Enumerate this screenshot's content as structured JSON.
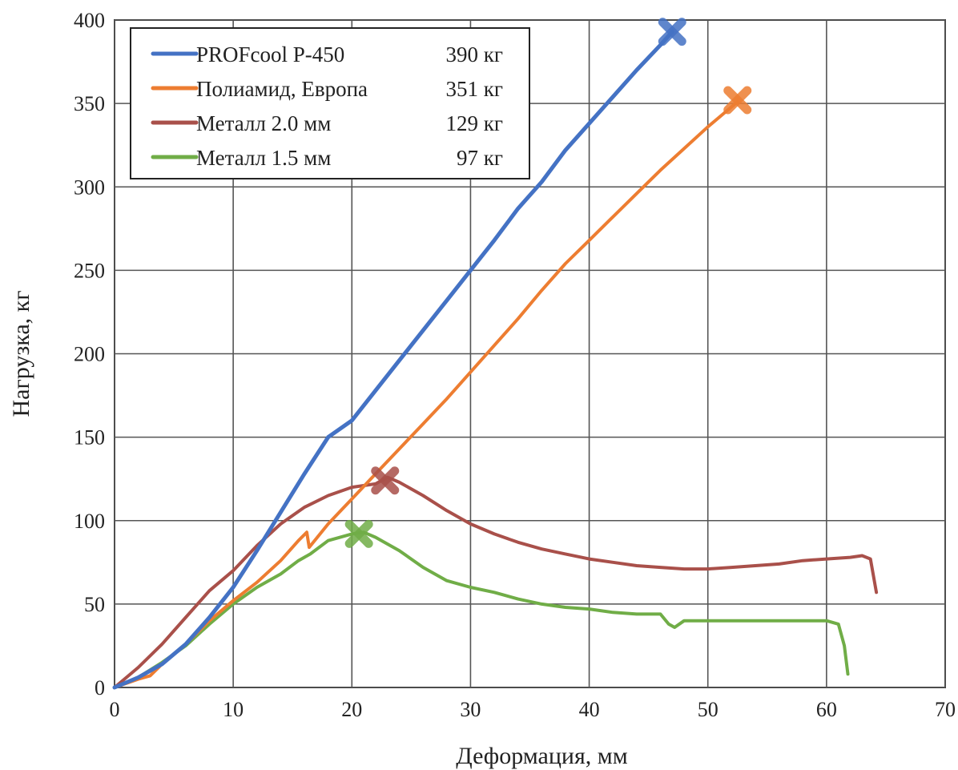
{
  "chart_data": {
    "type": "line",
    "title": "",
    "xlabel": "Деформация, мм",
    "ylabel": "Нагрузка, кг",
    "xlim": [
      0,
      70
    ],
    "ylim": [
      0,
      400
    ],
    "xticks": [
      0,
      10,
      20,
      30,
      40,
      50,
      60,
      70
    ],
    "yticks": [
      0,
      50,
      100,
      150,
      200,
      250,
      300,
      350,
      400
    ],
    "grid": true,
    "legend_position": "top-left",
    "series": [
      {
        "name": "PROFcool P-450",
        "legend_value": "390 кг",
        "color": "#4472c4",
        "marker": "x",
        "marker_point": [
          47,
          393
        ],
        "points": [
          [
            0,
            0
          ],
          [
            2,
            6
          ],
          [
            4,
            14
          ],
          [
            6,
            26
          ],
          [
            8,
            42
          ],
          [
            10,
            60
          ],
          [
            12,
            82
          ],
          [
            14,
            105
          ],
          [
            16,
            128
          ],
          [
            18,
            150
          ],
          [
            20,
            160
          ],
          [
            22,
            178
          ],
          [
            24,
            196
          ],
          [
            26,
            214
          ],
          [
            28,
            232
          ],
          [
            30,
            250
          ],
          [
            32,
            268
          ],
          [
            34,
            287
          ],
          [
            36,
            303
          ],
          [
            38,
            322
          ],
          [
            40,
            338
          ],
          [
            42,
            354
          ],
          [
            44,
            370
          ],
          [
            46,
            385
          ],
          [
            47,
            393
          ]
        ]
      },
      {
        "name": "Полиамид, Европа",
        "legend_value": "351 кг",
        "color": "#ed7d31",
        "marker": "x",
        "marker_point": [
          52.5,
          352
        ],
        "points": [
          [
            0,
            0
          ],
          [
            2,
            5
          ],
          [
            3,
            7
          ],
          [
            4,
            14
          ],
          [
            6,
            26
          ],
          [
            8,
            40
          ],
          [
            10,
            52
          ],
          [
            12,
            63
          ],
          [
            14,
            76
          ],
          [
            15.5,
            88
          ],
          [
            16.2,
            93
          ],
          [
            16.4,
            84
          ],
          [
            18,
            98
          ],
          [
            20,
            113
          ],
          [
            22,
            128
          ],
          [
            24,
            143
          ],
          [
            26,
            158
          ],
          [
            28,
            173
          ],
          [
            30,
            189
          ],
          [
            32,
            205
          ],
          [
            34,
            221
          ],
          [
            36,
            238
          ],
          [
            38,
            254
          ],
          [
            40,
            268
          ],
          [
            42,
            282
          ],
          [
            44,
            296
          ],
          [
            46,
            310
          ],
          [
            48,
            323
          ],
          [
            50,
            336
          ],
          [
            52.5,
            351
          ]
        ]
      },
      {
        "name": "Металл 2.0 мм",
        "legend_value": "129 кг",
        "color": "#a9504a",
        "marker": "x",
        "marker_point": [
          22.8,
          124
        ],
        "points": [
          [
            0,
            0
          ],
          [
            2,
            12
          ],
          [
            4,
            26
          ],
          [
            6,
            42
          ],
          [
            8,
            58
          ],
          [
            10,
            70
          ],
          [
            12,
            85
          ],
          [
            14,
            98
          ],
          [
            16,
            108
          ],
          [
            18,
            115
          ],
          [
            20,
            120
          ],
          [
            22,
            122
          ],
          [
            23,
            126
          ],
          [
            24,
            123
          ],
          [
            26,
            115
          ],
          [
            28,
            106
          ],
          [
            30,
            98
          ],
          [
            32,
            92
          ],
          [
            34,
            87
          ],
          [
            36,
            83
          ],
          [
            38,
            80
          ],
          [
            40,
            77
          ],
          [
            42,
            75
          ],
          [
            44,
            73
          ],
          [
            46,
            72
          ],
          [
            48,
            71
          ],
          [
            50,
            71
          ],
          [
            52,
            72
          ],
          [
            54,
            73
          ],
          [
            56,
            74
          ],
          [
            58,
            76
          ],
          [
            60,
            77
          ],
          [
            62,
            78
          ],
          [
            63,
            79
          ],
          [
            63.7,
            77
          ],
          [
            64.2,
            57
          ]
        ]
      },
      {
        "name": "Металл 1.5 мм",
        "legend_value": "97 кг",
        "color": "#70ad47",
        "marker": "x",
        "marker_point": [
          20.6,
          92
        ],
        "points": [
          [
            0,
            0
          ],
          [
            2,
            6
          ],
          [
            4,
            15
          ],
          [
            6,
            25
          ],
          [
            8,
            38
          ],
          [
            10,
            50
          ],
          [
            12,
            60
          ],
          [
            14,
            68
          ],
          [
            15.5,
            76
          ],
          [
            16.5,
            80
          ],
          [
            18,
            88
          ],
          [
            20,
            92
          ],
          [
            21,
            93
          ],
          [
            22,
            90
          ],
          [
            24,
            82
          ],
          [
            26,
            72
          ],
          [
            28,
            64
          ],
          [
            30,
            60
          ],
          [
            32,
            57
          ],
          [
            34,
            53
          ],
          [
            36,
            50
          ],
          [
            38,
            48
          ],
          [
            40,
            47
          ],
          [
            42,
            45
          ],
          [
            44,
            44
          ],
          [
            46,
            44
          ],
          [
            46.7,
            38
          ],
          [
            47.2,
            36
          ],
          [
            48,
            40
          ],
          [
            50,
            40
          ],
          [
            52,
            40
          ],
          [
            54,
            40
          ],
          [
            56,
            40
          ],
          [
            58,
            40
          ],
          [
            60,
            40
          ],
          [
            61,
            38
          ],
          [
            61.5,
            25
          ],
          [
            61.8,
            8
          ]
        ]
      }
    ]
  }
}
